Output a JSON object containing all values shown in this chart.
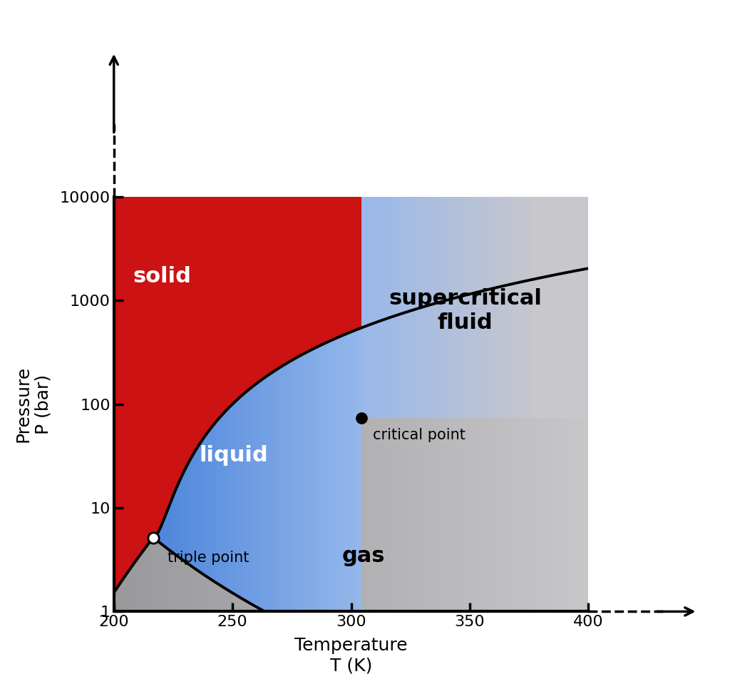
{
  "T_min": 200,
  "T_max": 400,
  "P_min": 1,
  "P_max": 10000,
  "triple_T": 216.6,
  "triple_P": 5.18,
  "critical_T": 304.2,
  "critical_P": 73.8,
  "xticks": [
    200,
    250,
    300,
    350,
    400
  ],
  "yticks": [
    1,
    10,
    100,
    1000,
    10000
  ],
  "solid_color": [
    0.8,
    0.07,
    0.07
  ],
  "liquid_color": [
    0.38,
    0.58,
    0.87
  ],
  "gas_color": [
    0.67,
    0.67,
    0.67
  ],
  "line_color": "#000000",
  "line_width": 2.8,
  "tick_fontsize": 16,
  "region_fontsize": 22,
  "label_fontsize": 15,
  "axis_label_fontsize": 18,
  "sublim_B": 3200,
  "melt_A": 216.6,
  "melt_P0": 5.18,
  "melt_c": 2750,
  "melt_n": 1.8
}
